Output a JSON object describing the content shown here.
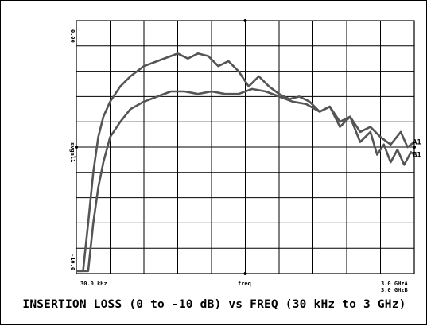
{
  "chart_data": {
    "type": "line",
    "title": "INSERTION LOSS (0 to -10 dB) vs FREQ (30 kHz to 3 GHz)",
    "y_top_label": "0.00",
    "y_mid_label": "svgal1",
    "y_bottom_label": "-10.0",
    "x_left_label": "30.0 kHz",
    "x_mid_label": "freq",
    "x_right_label": "3.0 GHzA",
    "x_right_label_2": "3.0 GHzB",
    "ylim": [
      -10,
      0
    ],
    "xlim": [
      0,
      1
    ],
    "grid": true,
    "line_color": "#555555",
    "series": [
      {
        "name": "A1",
        "x": [
          0.0,
          0.02,
          0.035,
          0.05,
          0.065,
          0.08,
          0.1,
          0.13,
          0.16,
          0.2,
          0.24,
          0.28,
          0.3,
          0.33,
          0.36,
          0.39,
          0.42,
          0.45,
          0.48,
          0.51,
          0.54,
          0.57,
          0.6,
          0.63,
          0.66,
          0.69,
          0.72,
          0.75,
          0.78,
          0.81,
          0.84,
          0.87,
          0.9,
          0.93,
          0.96,
          0.98,
          1.0
        ],
        "y": [
          -9.9,
          -9.9,
          -8.0,
          -6.0,
          -4.6,
          -3.8,
          -3.2,
          -2.6,
          -2.2,
          -1.8,
          -1.6,
          -1.4,
          -1.3,
          -1.5,
          -1.3,
          -1.4,
          -1.8,
          -1.6,
          -2.0,
          -2.6,
          -2.2,
          -2.6,
          -2.9,
          -3.1,
          -3.0,
          -3.2,
          -3.6,
          -3.4,
          -4.0,
          -3.8,
          -4.4,
          -4.2,
          -4.6,
          -4.9,
          -4.4,
          -5.0,
          -4.8
        ]
      },
      {
        "name": "B1",
        "x": [
          0.0,
          0.035,
          0.05,
          0.065,
          0.08,
          0.1,
          0.13,
          0.16,
          0.2,
          0.24,
          0.28,
          0.32,
          0.36,
          0.4,
          0.44,
          0.48,
          0.52,
          0.56,
          0.6,
          0.64,
          0.68,
          0.72,
          0.75,
          0.78,
          0.81,
          0.84,
          0.87,
          0.89,
          0.91,
          0.93,
          0.95,
          0.97,
          0.99,
          1.0
        ],
        "y": [
          -9.9,
          -9.9,
          -8.0,
          -6.6,
          -5.6,
          -4.6,
          -4.0,
          -3.5,
          -3.2,
          -3.0,
          -2.8,
          -2.8,
          -2.9,
          -2.8,
          -2.9,
          -2.9,
          -2.7,
          -2.8,
          -3.0,
          -3.2,
          -3.3,
          -3.6,
          -3.4,
          -4.2,
          -3.8,
          -4.8,
          -4.4,
          -5.3,
          -4.9,
          -5.6,
          -5.1,
          -5.7,
          -5.2,
          -5.3
        ]
      }
    ]
  }
}
